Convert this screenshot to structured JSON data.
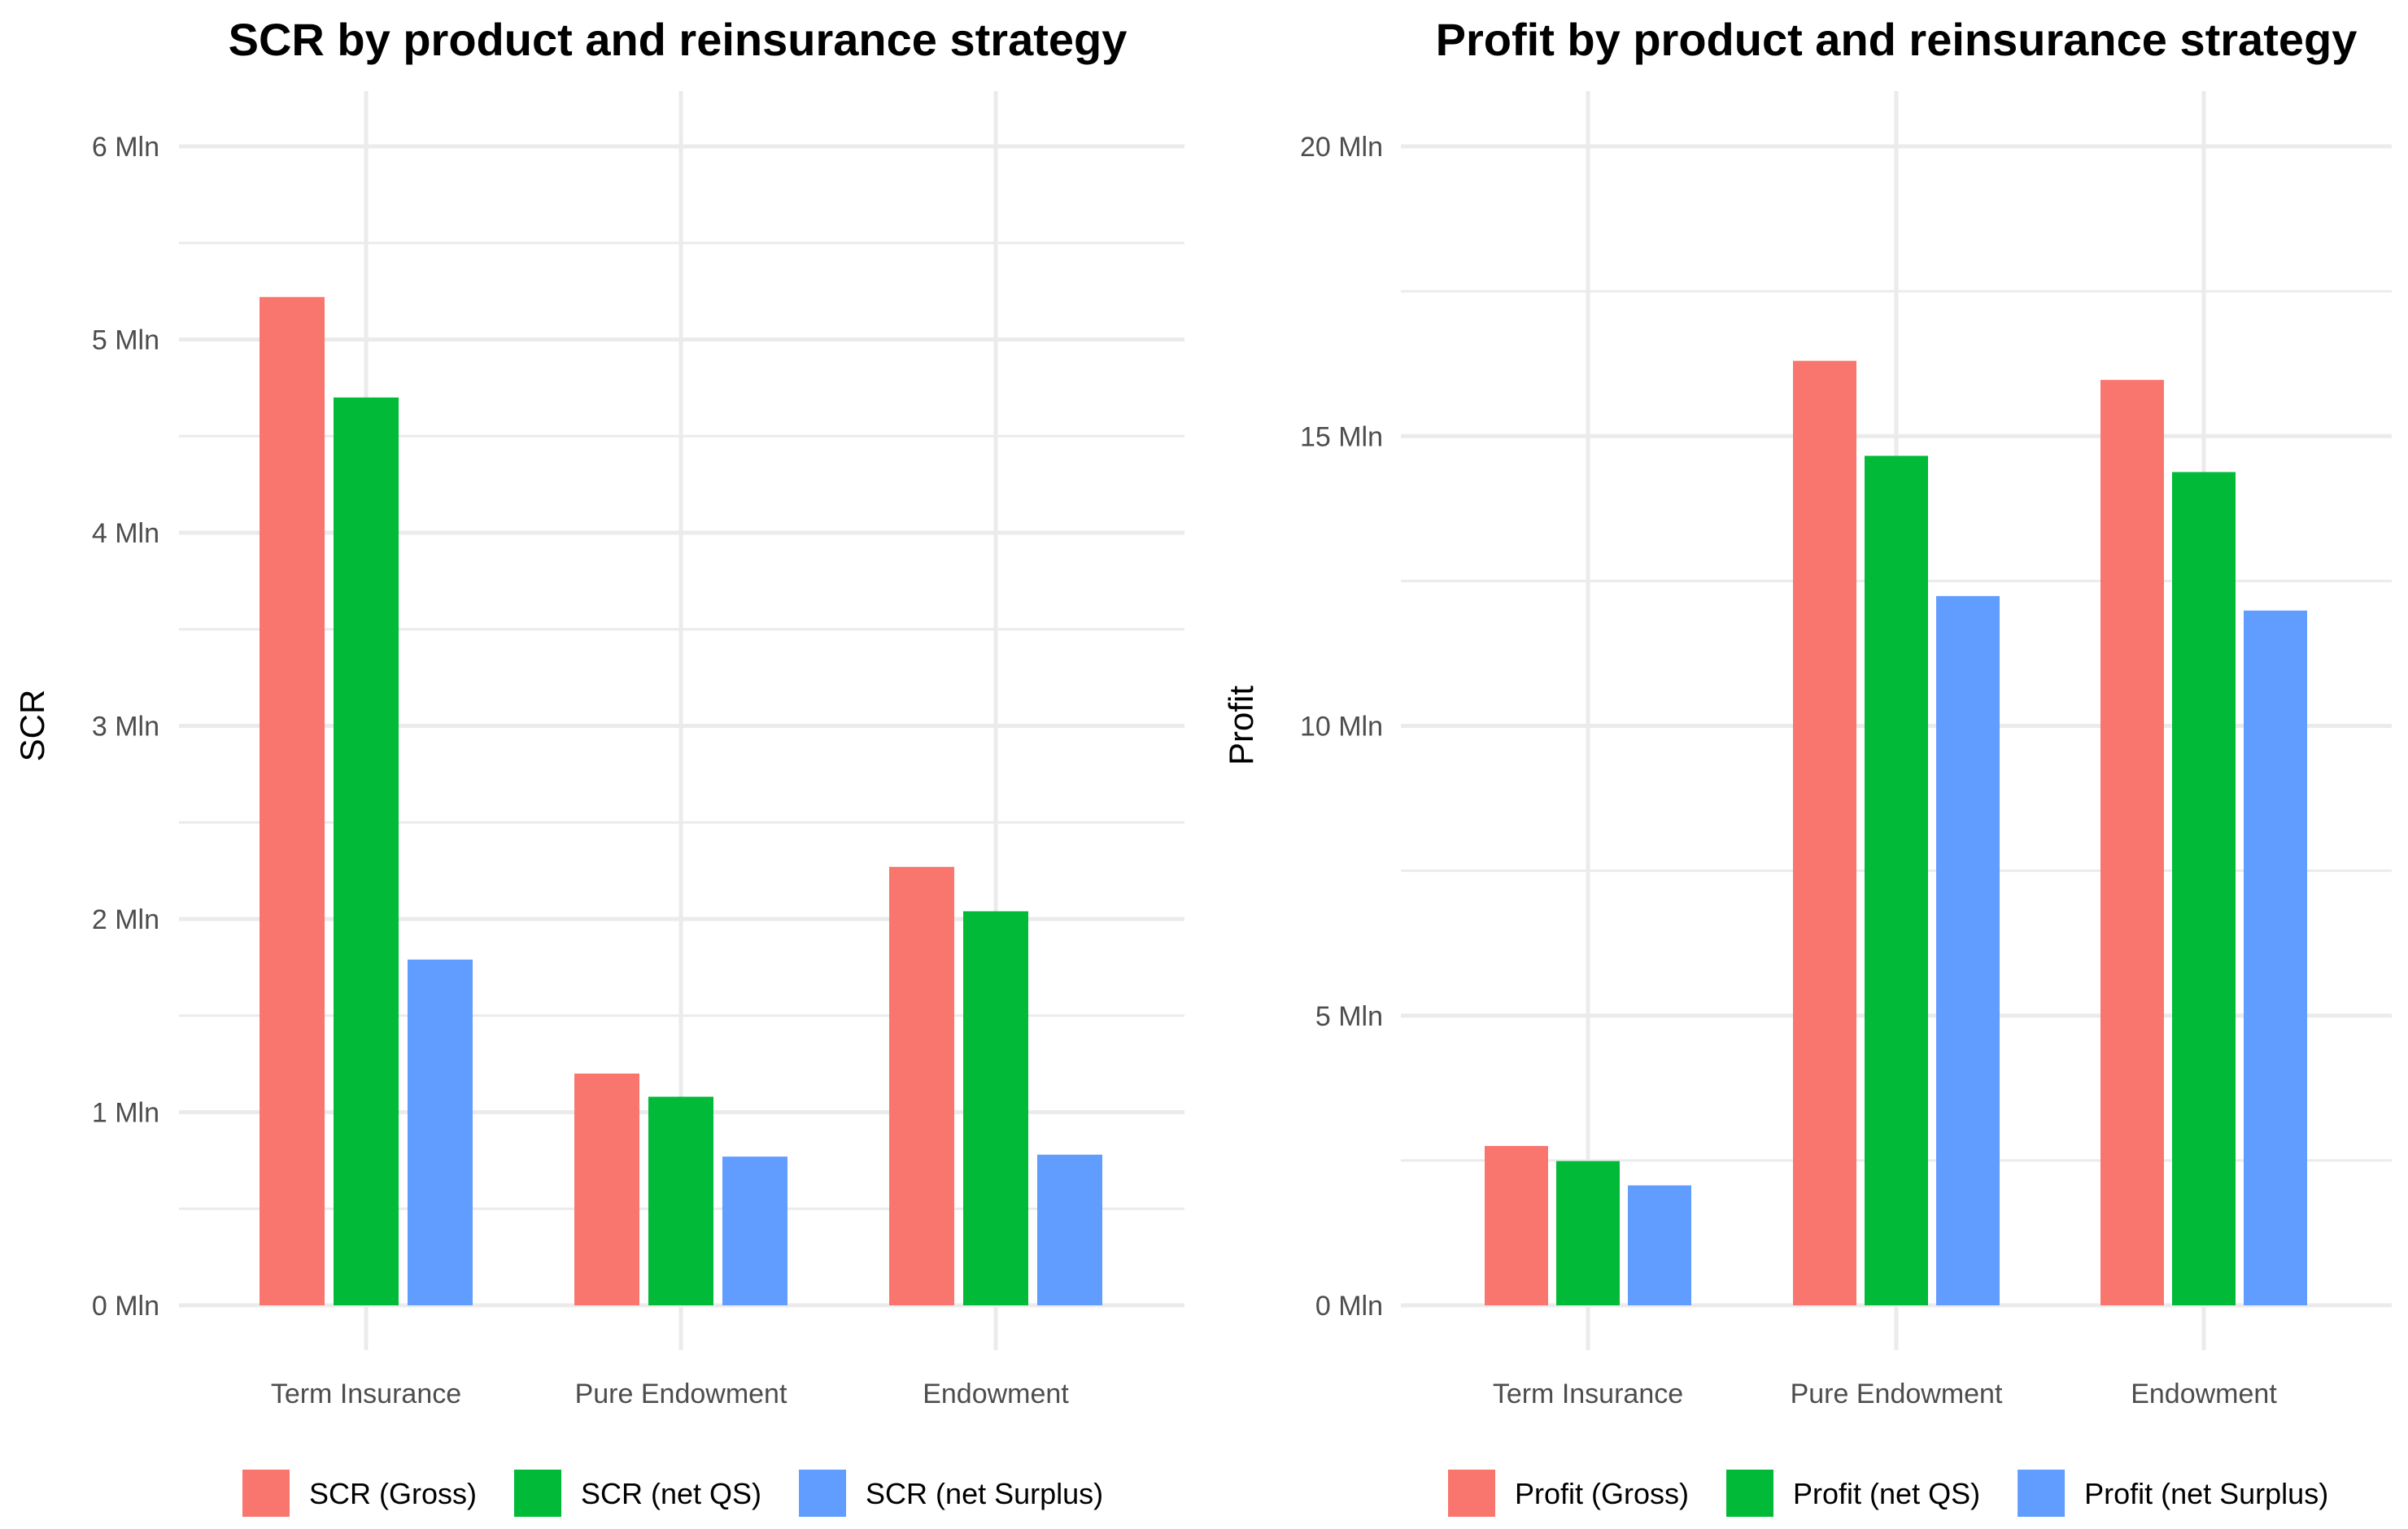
{
  "chart_data": [
    {
      "type": "bar",
      "title": "SCR by product and reinsurance strategy",
      "xlabel": "",
      "ylabel": "SCR",
      "ylim": [
        0,
        6
      ],
      "yticks": [
        0,
        1,
        2,
        3,
        4,
        5,
        6
      ],
      "ytick_labels": [
        "0 Mln",
        "1 Mln",
        "2 Mln",
        "3 Mln",
        "4 Mln",
        "5 Mln",
        "6 Mln"
      ],
      "categories": [
        "Term Insurance",
        "Pure Endowment",
        "Endowment"
      ],
      "series": [
        {
          "name": "SCR (Gross)",
          "color": "#F8766D",
          "values": [
            5.22,
            1.2,
            2.27
          ]
        },
        {
          "name": "SCR (net QS)",
          "color": "#00BA38",
          "values": [
            4.7,
            1.08,
            2.04
          ]
        },
        {
          "name": "SCR (net Surplus)",
          "color": "#619CFF",
          "values": [
            1.79,
            0.77,
            0.78
          ]
        }
      ],
      "legend_position": "bottom"
    },
    {
      "type": "bar",
      "title": "Profit by product and reinsurance strategy",
      "xlabel": "",
      "ylabel": "Profit",
      "ylim": [
        0,
        20
      ],
      "yticks": [
        0,
        5,
        10,
        15,
        20
      ],
      "ytick_labels": [
        "0 Mln",
        "5 Mln",
        "10 Mln",
        "15 Mln",
        "20 Mln"
      ],
      "categories": [
        "Term Insurance",
        "Pure Endowment",
        "Endowment"
      ],
      "series": [
        {
          "name": "Profit (Gross)",
          "color": "#F8766D",
          "values": [
            2.75,
            16.3,
            15.97
          ]
        },
        {
          "name": "Profit (net QS)",
          "color": "#00BA38",
          "values": [
            2.49,
            14.66,
            14.38
          ]
        },
        {
          "name": "Profit (net Surplus)",
          "color": "#619CFF",
          "values": [
            2.07,
            12.24,
            11.99
          ]
        }
      ],
      "legend_position": "bottom"
    }
  ]
}
